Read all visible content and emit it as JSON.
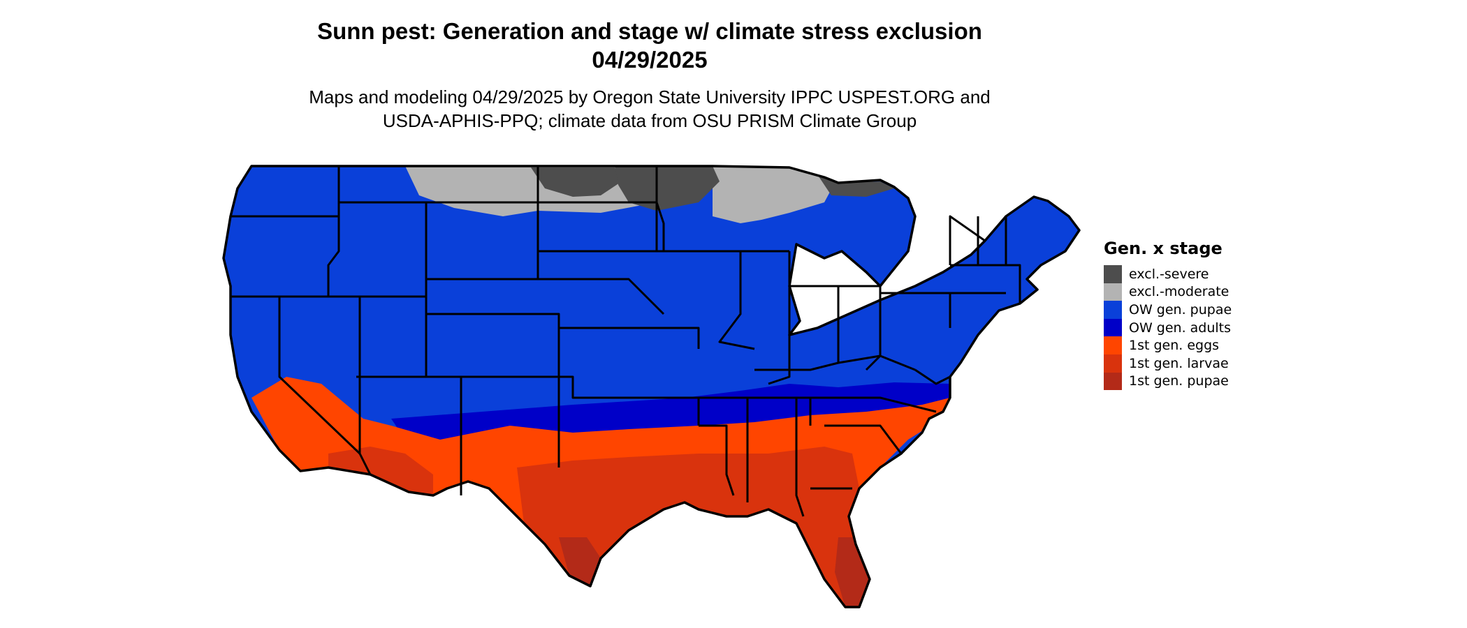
{
  "title_line1": "Sunn pest: Generation and stage w/ climate stress exclusion",
  "title_line2": "04/29/2025",
  "subtitle_line1": "Maps and modeling 04/29/2025 by Oregon State University IPPC USPEST.ORG and",
  "subtitle_line2": "USDA-APHIS-PPQ; climate data from OSU PRISM Climate Group",
  "legend": {
    "title": "Gen. x stage",
    "items": [
      {
        "label": "excl.-severe",
        "color": "#4d4d4d"
      },
      {
        "label": "excl.-moderate",
        "color": "#b3b3b3"
      },
      {
        "label": "OW gen. pupae",
        "color": "#0a40d9"
      },
      {
        "label": "OW gen. adults",
        "color": "#0000c8"
      },
      {
        "label": "1st gen. eggs",
        "color": "#ff4500"
      },
      {
        "label": "1st gen. larvae",
        "color": "#d9330d"
      },
      {
        "label": "1st gen. pupae",
        "color": "#b32a18"
      }
    ]
  }
}
